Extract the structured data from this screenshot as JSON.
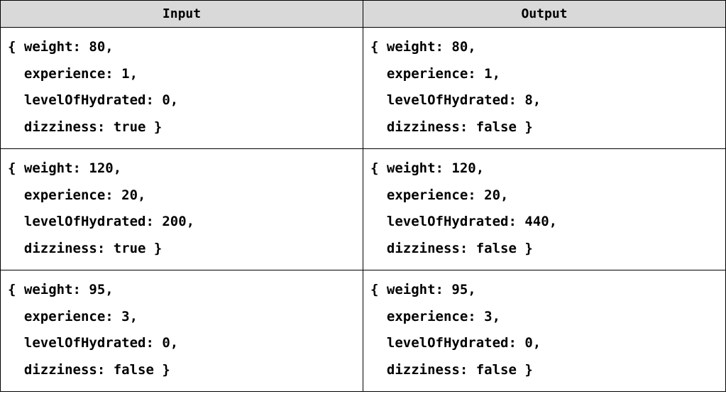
{
  "table": {
    "headers": [
      "Input",
      "Output"
    ],
    "rows": [
      {
        "input": [
          "{ weight: 80,",
          "  experience: 1,",
          "  levelOfHydrated: 0,",
          "  dizziness: true }"
        ],
        "output": [
          "{ weight: 80,",
          "  experience: 1,",
          "  levelOfHydrated: 8,",
          "  dizziness: false }"
        ]
      },
      {
        "input": [
          "{ weight: 120,",
          "  experience: 20,",
          "  levelOfHydrated: 200,",
          "  dizziness: true }"
        ],
        "output": [
          "{ weight: 120,",
          "  experience: 20,",
          "  levelOfHydrated: 440,",
          "  dizziness: false }"
        ]
      },
      {
        "input": [
          "{ weight: 95,",
          "  experience: 3,",
          "  levelOfHydrated: 0,",
          "  dizziness: false }"
        ],
        "output": [
          "{ weight: 95,",
          "  experience: 3,",
          "  levelOfHydrated: 0,",
          "  dizziness: false }"
        ]
      }
    ]
  }
}
